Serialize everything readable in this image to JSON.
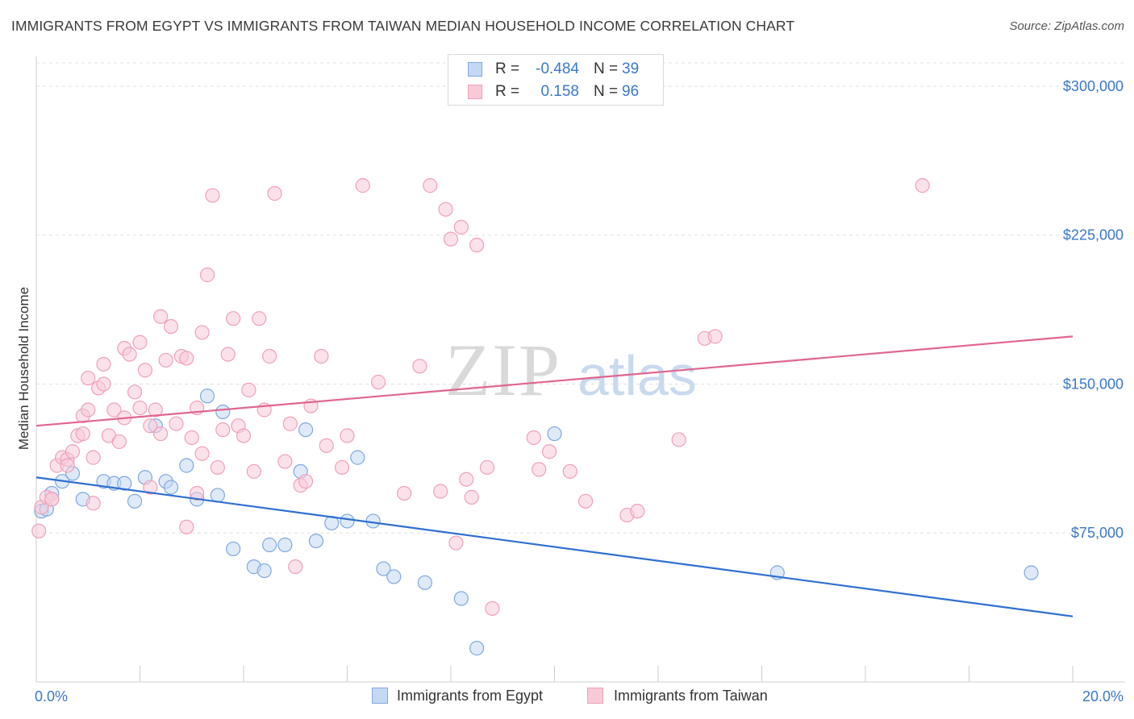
{
  "chart_data": {
    "type": "scatter",
    "title": "IMMIGRANTS FROM EGYPT VS IMMIGRANTS FROM TAIWAN MEDIAN HOUSEHOLD INCOME CORRELATION CHART",
    "source": "Source: ZipAtlas.com",
    "ylabel": "Median Household Income",
    "xlim": [
      0,
      20
    ],
    "ylim": [
      0,
      315000
    ],
    "x_tick_labels": [
      "0.0%",
      "20.0%"
    ],
    "y_ticks": [
      75000,
      150000,
      225000,
      300000
    ],
    "y_tick_labels": [
      "$75,000",
      "$150,000",
      "$225,000",
      "$300,000"
    ],
    "grid": "horizontal dashed",
    "watermark": {
      "zip": "ZIP",
      "atlas": "atlas"
    },
    "legend_stats": [
      {
        "r_label": "R =",
        "r_value": "-0.484",
        "n_label": "N =",
        "n_value": "39"
      },
      {
        "r_label": "R =",
        "r_value": "0.158",
        "n_label": "N =",
        "n_value": "96"
      }
    ],
    "series": [
      {
        "name": "Immigrants from Egypt",
        "color": "#7fa8e0",
        "fill": "#c5d8f3",
        "line_color": "#2f6fd0",
        "trend": {
          "x0": 0,
          "y0": 103000,
          "x1": 20,
          "y1": 33000
        },
        "points": [
          [
            0.1,
            86000
          ],
          [
            0.3,
            95000
          ],
          [
            0.5,
            101000
          ],
          [
            0.7,
            105000
          ],
          [
            0.9,
            92000
          ],
          [
            1.3,
            101000
          ],
          [
            1.5,
            100000
          ],
          [
            1.7,
            100000
          ],
          [
            1.9,
            91000
          ],
          [
            2.1,
            103000
          ],
          [
            2.3,
            129000
          ],
          [
            2.5,
            101000
          ],
          [
            2.6,
            98000
          ],
          [
            2.9,
            109000
          ],
          [
            3.1,
            92000
          ],
          [
            3.3,
            144000
          ],
          [
            3.5,
            94000
          ],
          [
            3.6,
            136000
          ],
          [
            3.8,
            67000
          ],
          [
            4.2,
            58000
          ],
          [
            4.4,
            56000
          ],
          [
            4.5,
            69000
          ],
          [
            4.8,
            69000
          ],
          [
            5.1,
            106000
          ],
          [
            5.2,
            127000
          ],
          [
            5.4,
            71000
          ],
          [
            5.7,
            80000
          ],
          [
            6.0,
            81000
          ],
          [
            6.2,
            113000
          ],
          [
            6.5,
            81000
          ],
          [
            6.7,
            57000
          ],
          [
            6.9,
            53000
          ],
          [
            7.5,
            50000
          ],
          [
            8.2,
            42000
          ],
          [
            8.5,
            17000
          ],
          [
            10.0,
            125000
          ],
          [
            14.3,
            55000
          ],
          [
            19.2,
            55000
          ],
          [
            0.2,
            87000
          ]
        ]
      },
      {
        "name": "Immigrants from Taiwan",
        "color": "#f0a0b8",
        "fill": "#f8cad8",
        "line_color": "#e06690",
        "trend": {
          "x0": 0,
          "y0": 129000,
          "x1": 20,
          "y1": 174000
        },
        "points": [
          [
            0.05,
            76000
          ],
          [
            0.1,
            88000
          ],
          [
            0.2,
            93000
          ],
          [
            0.3,
            92000
          ],
          [
            0.4,
            109000
          ],
          [
            0.5,
            113000
          ],
          [
            0.6,
            112000
          ],
          [
            0.6,
            109000
          ],
          [
            0.7,
            116000
          ],
          [
            0.8,
            124000
          ],
          [
            0.9,
            125000
          ],
          [
            0.9,
            134000
          ],
          [
            1.0,
            137000
          ],
          [
            1.0,
            153000
          ],
          [
            1.1,
            113000
          ],
          [
            1.2,
            148000
          ],
          [
            1.3,
            150000
          ],
          [
            1.3,
            160000
          ],
          [
            1.4,
            124000
          ],
          [
            1.5,
            137000
          ],
          [
            1.6,
            121000
          ],
          [
            1.7,
            133000
          ],
          [
            1.7,
            168000
          ],
          [
            1.8,
            165000
          ],
          [
            1.9,
            146000
          ],
          [
            2.0,
            138000
          ],
          [
            2.0,
            171000
          ],
          [
            2.1,
            157000
          ],
          [
            2.2,
            129000
          ],
          [
            2.3,
            137000
          ],
          [
            2.4,
            125000
          ],
          [
            2.4,
            184000
          ],
          [
            2.5,
            162000
          ],
          [
            2.6,
            179000
          ],
          [
            2.7,
            130000
          ],
          [
            2.8,
            164000
          ],
          [
            2.9,
            163000
          ],
          [
            3.0,
            123000
          ],
          [
            3.1,
            138000
          ],
          [
            3.2,
            115000
          ],
          [
            3.2,
            176000
          ],
          [
            3.3,
            205000
          ],
          [
            3.4,
            245000
          ],
          [
            3.5,
            108000
          ],
          [
            3.6,
            127000
          ],
          [
            3.7,
            165000
          ],
          [
            3.8,
            183000
          ],
          [
            3.9,
            129000
          ],
          [
            4.0,
            124000
          ],
          [
            4.1,
            147000
          ],
          [
            4.2,
            106000
          ],
          [
            4.3,
            183000
          ],
          [
            4.4,
            137000
          ],
          [
            4.5,
            164000
          ],
          [
            4.6,
            246000
          ],
          [
            4.8,
            111000
          ],
          [
            5.0,
            58000
          ],
          [
            5.1,
            99000
          ],
          [
            5.2,
            101000
          ],
          [
            5.3,
            139000
          ],
          [
            5.5,
            164000
          ],
          [
            5.6,
            119000
          ],
          [
            5.9,
            108000
          ],
          [
            6.0,
            124000
          ],
          [
            6.3,
            250000
          ],
          [
            6.6,
            151000
          ],
          [
            7.1,
            95000
          ],
          [
            7.4,
            159000
          ],
          [
            7.6,
            250000
          ],
          [
            7.8,
            96000
          ],
          [
            7.9,
            238000
          ],
          [
            8.0,
            223000
          ],
          [
            8.1,
            70000
          ],
          [
            8.2,
            229000
          ],
          [
            8.3,
            102000
          ],
          [
            8.4,
            93000
          ],
          [
            8.5,
            220000
          ],
          [
            8.7,
            108000
          ],
          [
            8.8,
            37000
          ],
          [
            9.6,
            123000
          ],
          [
            9.7,
            107000
          ],
          [
            9.9,
            116000
          ],
          [
            10.3,
            106000
          ],
          [
            10.6,
            91000
          ],
          [
            11.4,
            84000
          ],
          [
            11.6,
            86000
          ],
          [
            12.4,
            122000
          ],
          [
            12.9,
            173000
          ],
          [
            13.1,
            174000
          ],
          [
            17.1,
            250000
          ],
          [
            2.9,
            78000
          ],
          [
            3.1,
            95000
          ],
          [
            4.9,
            130000
          ],
          [
            0.3,
            92000
          ],
          [
            1.1,
            90000
          ],
          [
            2.2,
            98000
          ]
        ]
      }
    ]
  }
}
